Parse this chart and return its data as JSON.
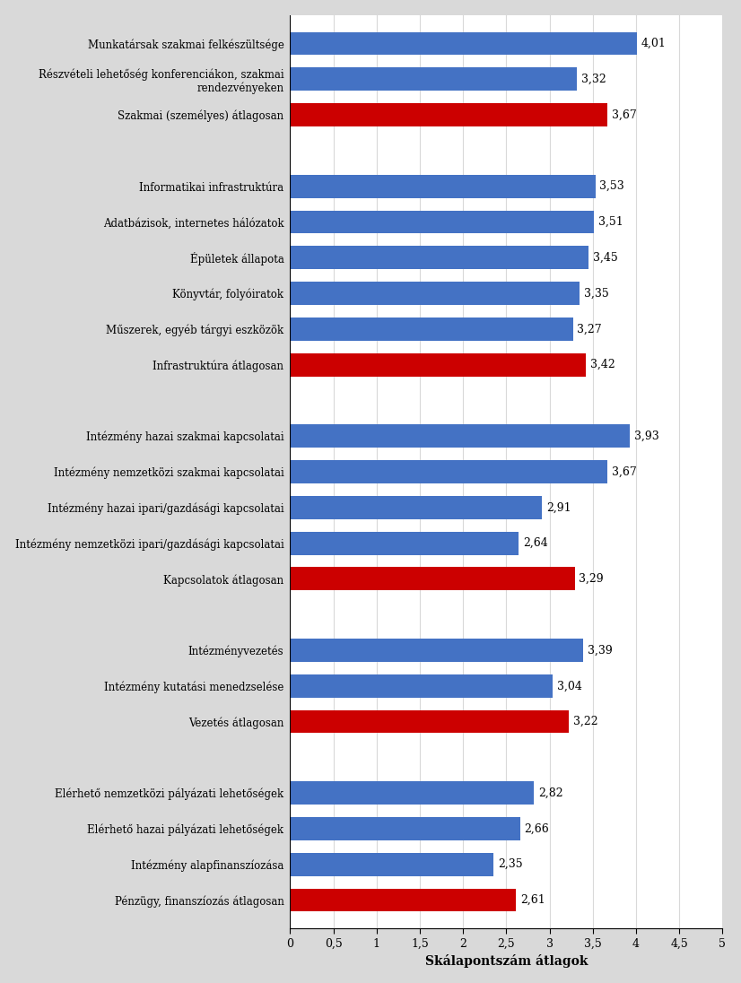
{
  "categories": [
    "Munkatársak szakmai felkészültsége",
    "Részvételi lehetőség konferenciákon, szakmai\nrendezvényeken",
    "Szakmai (személyes) átlagosan",
    "",
    "Informatikai infrastruktúra",
    "Adatbázisok, internetes hálózatok",
    "Épületek állapota",
    "Könyvtár, folyóiratok",
    "Műszerek, egyéb tárgyi eszközök",
    "Infrastruktúra átlagosan",
    "",
    "Intézmény hazai szakmai kapcsolatai",
    "Intézmény nemzetközi szakmai kapcsolatai",
    "Intézmény hazai ipari/gazdásági kapcsolatai",
    "Intézmény nemzetközi ipari/gazdásági kapcsolatai",
    "Kapcsolatok átlagosan",
    "",
    "Intézményvezetés",
    "Intézmény kutatási menedzselése",
    "Vezetés átlagosan",
    "",
    "Elérhető nemzetközi pályázati lehetőségek",
    "Elérhető hazai pályázati lehetőségek",
    "Intézmény alapfinanszíozása",
    "Pénzügy, finanszíozás átlagosan"
  ],
  "values": [
    4.01,
    3.32,
    3.67,
    0,
    3.53,
    3.51,
    3.45,
    3.35,
    3.27,
    3.42,
    0,
    3.93,
    3.67,
    2.91,
    2.64,
    3.29,
    0,
    3.39,
    3.04,
    3.22,
    0,
    2.82,
    2.66,
    2.35,
    2.61
  ],
  "colors": [
    "#4472c4",
    "#4472c4",
    "#cc0000",
    "none",
    "#4472c4",
    "#4472c4",
    "#4472c4",
    "#4472c4",
    "#4472c4",
    "#cc0000",
    "none",
    "#4472c4",
    "#4472c4",
    "#4472c4",
    "#4472c4",
    "#cc0000",
    "none",
    "#4472c4",
    "#4472c4",
    "#cc0000",
    "none",
    "#4472c4",
    "#4472c4",
    "#4472c4",
    "#cc0000"
  ],
  "labels": [
    "4,01",
    "3,32",
    "3,67",
    "",
    "3,53",
    "3,51",
    "3,45",
    "3,35",
    "3,27",
    "3,42",
    "",
    "3,93",
    "3,67",
    "2,91",
    "2,64",
    "3,29",
    "",
    "3,39",
    "3,04",
    "3,22",
    "",
    "2,82",
    "2,66",
    "2,35",
    "2,61"
  ],
  "xlabel": "Skálapontszám átlagok",
  "xlim": [
    0,
    5
  ],
  "xticks": [
    0,
    0.5,
    1,
    1.5,
    2,
    2.5,
    3,
    3.5,
    4,
    4.5,
    5
  ],
  "xtick_labels": [
    "0",
    "0,5",
    "1",
    "1,5",
    "2",
    "2,5",
    "3",
    "3,5",
    "4",
    "4,5",
    "5"
  ],
  "plot_bg_color": "#ffffff",
  "fig_bg_color": "#d9d9d9",
  "bar_height": 0.65,
  "label_fontsize": 8.5,
  "value_fontsize": 9
}
